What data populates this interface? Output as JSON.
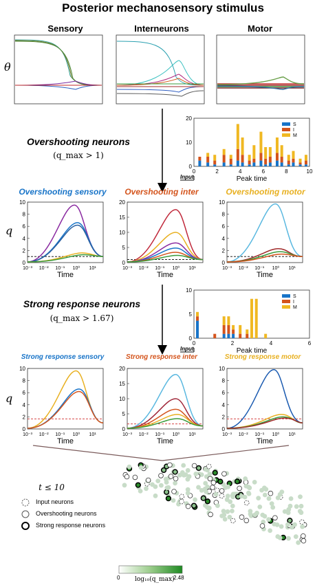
{
  "title": "Posterior mechanosensory stimulus",
  "colors": {
    "sensory": "#1874c8",
    "inter": "#d4541c",
    "motor": "#e8b020",
    "S": "#1874c8",
    "I": "#d4541c",
    "M": "#f0b822"
  },
  "top_row": {
    "ylabel": "θ",
    "groups": [
      "Sensory",
      "Interneurons",
      "Motor"
    ]
  },
  "overshoot": {
    "title": "Overshooting neurons",
    "condition": "(q_max > 1)",
    "histogram": {
      "xlabel": "Peak time",
      "input_label": "Input",
      "legend": [
        "S",
        "I",
        "M"
      ],
      "yticks": [
        "0",
        "10",
        "20"
      ],
      "xticks": [
        "0",
        "2",
        "4",
        "6",
        "8",
        "10"
      ]
    },
    "plots": [
      {
        "title": "Overshooting sensory",
        "yticks": [
          "0",
          "2",
          "4",
          "6",
          "8",
          "10"
        ]
      },
      {
        "title": "Overshooting inter",
        "yticks": [
          "0",
          "5",
          "10",
          "15",
          "20"
        ]
      },
      {
        "title": "Overshooting motor",
        "yticks": [
          "0",
          "2",
          "4",
          "6",
          "8",
          "10"
        ]
      }
    ],
    "ylabel": "q",
    "xlabel": "Time",
    "xticks": [
      "10⁻³",
      "10⁻²",
      "10⁻¹",
      "10⁰",
      "10¹"
    ]
  },
  "strong": {
    "title": "Strong response neurons",
    "condition": "(q_max > 1.67)",
    "histogram": {
      "xlabel": "Peak time",
      "input_label": "Input",
      "legend": [
        "S",
        "I",
        "M"
      ],
      "yticks": [
        "0",
        "5",
        "10"
      ],
      "xticks": [
        "0",
        "2",
        "4",
        "6"
      ]
    },
    "plots": [
      {
        "title": "Strong response sensory",
        "yticks": [
          "0",
          "2",
          "4",
          "6",
          "8",
          "10"
        ]
      },
      {
        "title": "Strong response inter",
        "yticks": [
          "0",
          "5",
          "10",
          "15",
          "20"
        ]
      },
      {
        "title": "Strong response motor",
        "yticks": [
          "0",
          "2",
          "4",
          "6",
          "8",
          "10"
        ]
      }
    ],
    "ylabel": "q",
    "xlabel": "Time",
    "xticks": [
      "10⁻³",
      "10⁻²",
      "10⁻¹",
      "10⁰",
      "10¹"
    ]
  },
  "network": {
    "condition": "t ≤ 10",
    "legend": [
      "Input neurons",
      "Overshooting neurons",
      "Strong response neurons"
    ],
    "colorbar": {
      "min": "0",
      "max": "2.48",
      "label": "log₁₀(q_max)"
    }
  }
}
